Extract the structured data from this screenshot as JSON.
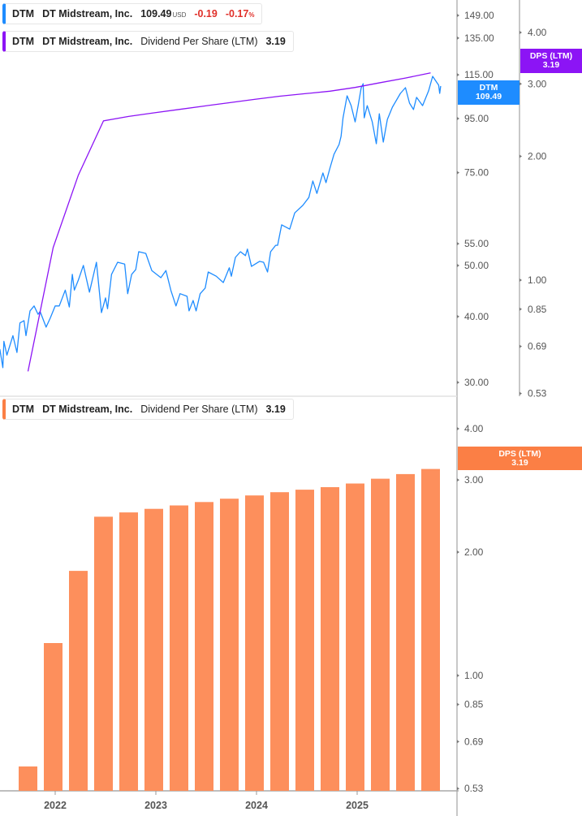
{
  "colors": {
    "price": "#1e8cff",
    "dps_line": "#8c14f5",
    "dps_bar": "#fd8f5c",
    "dps_tag": "#fb7f45",
    "negative": "#e0302a"
  },
  "legend_price": {
    "ticker": "DTM",
    "company": "DT Midstream, Inc.",
    "price": "109.49",
    "currency": "USD",
    "change": "-0.19",
    "change_pct": "-0.17",
    "pct_sign": "%"
  },
  "legend_dps_top": {
    "ticker": "DTM",
    "company": "DT Midstream, Inc.",
    "metric": "Dividend Per Share (LTM)",
    "value": "3.19"
  },
  "legend_dps_bottom": {
    "ticker": "DTM",
    "company": "DT Midstream, Inc.",
    "metric": "Dividend Per Share (LTM)",
    "value": "3.19"
  },
  "tags": {
    "price": {
      "label": "DTM",
      "value": "109.49"
    },
    "dps_top": {
      "label": "DPS (LTM)",
      "value": "3.19"
    },
    "dps_bottom": {
      "label": "DPS (LTM)",
      "value": "3.19"
    }
  },
  "chart_data": [
    {
      "type": "line",
      "title": "",
      "yscale": "log",
      "grid": false,
      "legend": "top-left",
      "x_unit": "year",
      "price_axis_ticks": [
        "149.00",
        "135.00",
        "115.00",
        "95.00",
        "75.00",
        "55.00",
        "50.00",
        "40.00",
        "30.00"
      ],
      "dps_axis_ticks": [
        "4.00",
        "3.00",
        "2.00",
        "1.00",
        "0.85",
        "0.69",
        "0.53"
      ],
      "series": [
        {
          "name": "DTM",
          "axis": "price",
          "x": [
            2021.45,
            2021.48,
            2021.49,
            2021.52,
            2021.58,
            2021.62,
            2021.65,
            2021.69,
            2021.71,
            2021.75,
            2021.79,
            2021.83,
            2021.85,
            2021.91,
            2021.95,
            2022.0,
            2022.04,
            2022.1,
            2022.14,
            2022.17,
            2022.19,
            2022.23,
            2022.28,
            2022.34,
            2022.41,
            2022.46,
            2022.5,
            2022.52,
            2022.56,
            2022.62,
            2022.69,
            2022.72,
            2022.76,
            2022.8,
            2022.83,
            2022.9,
            2022.96,
            2023.05,
            2023.1,
            2023.15,
            2023.2,
            2023.24,
            2023.31,
            2023.33,
            2023.37,
            2023.4,
            2023.44,
            2023.49,
            2023.52,
            2023.6,
            2023.67,
            2023.73,
            2023.75,
            2023.79,
            2023.84,
            2023.89,
            2023.91,
            2023.95,
            2024.03,
            2024.07,
            2024.11,
            2024.14,
            2024.19,
            2024.21,
            2024.25,
            2024.33,
            2024.38,
            2024.46,
            2024.52,
            2024.56,
            2024.6,
            2024.66,
            2024.69,
            2024.73,
            2024.77,
            2024.82,
            2024.84,
            2024.86,
            2024.9,
            2024.94,
            2024.98,
            2025.01,
            2025.04,
            2025.06,
            2025.07,
            2025.1,
            2025.15,
            2025.19,
            2025.22,
            2025.26,
            2025.3,
            2025.35,
            2025.43,
            2025.48,
            2025.52,
            2025.56,
            2025.59,
            2025.65,
            2025.71,
            2025.75,
            2025.81,
            2025.82,
            2025.83
          ],
          "y": [
            34.7,
            32.0,
            35.9,
            33.8,
            36.8,
            34.2,
            38.9,
            39.3,
            36.8,
            41.0,
            41.9,
            40.4,
            40.9,
            38.2,
            39.7,
            41.9,
            41.9,
            44.9,
            41.7,
            48.1,
            44.9,
            46.9,
            50.0,
            44.5,
            50.7,
            40.7,
            43.4,
            41.4,
            48.1,
            50.7,
            50.3,
            44.2,
            48.1,
            49.1,
            53.1,
            52.7,
            48.9,
            47.4,
            48.9,
            44.8,
            41.9,
            44.2,
            43.7,
            41.0,
            42.9,
            41.0,
            44.2,
            45.3,
            48.6,
            47.7,
            46.4,
            49.5,
            47.7,
            51.8,
            53.1,
            52.2,
            53.7,
            49.8,
            50.9,
            50.7,
            48.6,
            53.1,
            54.6,
            54.6,
            59.7,
            58.6,
            62.9,
            65.0,
            67.3,
            72.3,
            68.5,
            74.9,
            71.8,
            76.5,
            81.3,
            84.8,
            87.9,
            95.3,
            104.9,
            100.5,
            93.6,
            100.5,
            108.7,
            110.6,
            95.3,
            100.5,
            93.6,
            85.1,
            97.0,
            85.7,
            94.6,
            99.8,
            106.0,
            108.7,
            101.6,
            98.8,
            104.2,
            100.5,
            107.2,
            114.2,
            109.9,
            106.0,
            109.49
          ]
        },
        {
          "name": "DPS (LTM)",
          "axis": "dps",
          "x": [
            2021.73,
            2021.98,
            2022.23,
            2022.48,
            2022.73,
            2022.98,
            2023.23,
            2023.48,
            2023.73,
            2023.98,
            2024.23,
            2024.48,
            2024.73,
            2024.98,
            2025.23,
            2025.48,
            2025.73
          ],
          "y": [
            0.6,
            1.2,
            1.8,
            2.44,
            2.5,
            2.55,
            2.6,
            2.65,
            2.7,
            2.75,
            2.8,
            2.84,
            2.88,
            2.94,
            3.02,
            3.1,
            3.19
          ]
        }
      ]
    },
    {
      "type": "bar",
      "title": "",
      "yscale": "log",
      "grid": false,
      "legend": "top-left",
      "x_unit": "year",
      "x_ticks": [
        "2022",
        "2023",
        "2024",
        "2025"
      ],
      "y_ticks": [
        "4.00",
        "3.00",
        "2.00",
        "1.00",
        "0.85",
        "0.69",
        "0.53"
      ],
      "series": [
        {
          "name": "DPS (LTM)",
          "x": [
            2021.73,
            2021.98,
            2022.23,
            2022.48,
            2022.73,
            2022.98,
            2023.23,
            2023.48,
            2023.73,
            2023.98,
            2024.23,
            2024.48,
            2024.73,
            2024.98,
            2025.23,
            2025.48,
            2025.73
          ],
          "values": [
            0.6,
            1.2,
            1.8,
            2.44,
            2.5,
            2.55,
            2.6,
            2.65,
            2.7,
            2.75,
            2.8,
            2.84,
            2.88,
            2.94,
            3.02,
            3.1,
            3.19
          ]
        }
      ]
    }
  ]
}
